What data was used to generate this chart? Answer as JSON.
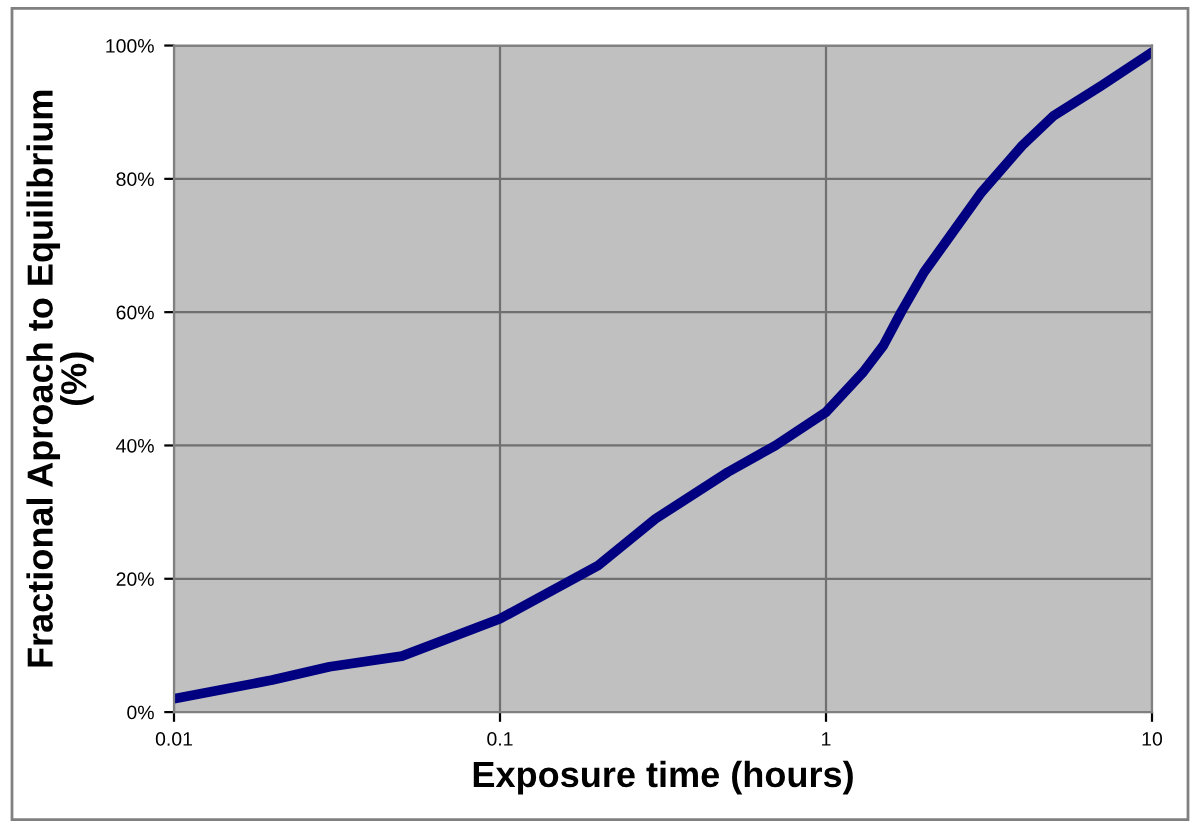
{
  "chart_data": {
    "type": "line",
    "xlabel": "Exposure time (hours)",
    "ylabel": "Fractional Aproach to Equilibrium\n(%)",
    "log": "x",
    "xlim": [
      0.01,
      10
    ],
    "xticks": [
      0.01,
      0.1,
      1,
      10
    ],
    "ylim": [
      0,
      100
    ],
    "yticks": [
      {
        "value": 0,
        "label": "0%"
      },
      {
        "value": 20,
        "label": "20%"
      },
      {
        "value": 40,
        "label": "40%"
      },
      {
        "value": 60,
        "label": "60%"
      },
      {
        "value": 80,
        "label": "80%"
      },
      {
        "value": 100,
        "label": "100%"
      }
    ],
    "grid": true,
    "marker": "none",
    "line_style": "solid",
    "series": [
      {
        "color": "#000080",
        "x": [
          0.01,
          0.02,
          0.03,
          0.05,
          0.1,
          0.2,
          0.3,
          0.5,
          0.7,
          1,
          1.3,
          1.5,
          1.7,
          2,
          3,
          4,
          5,
          7,
          10
        ],
        "values": [
          2,
          4.8,
          6.8,
          8.4,
          14,
          22,
          29,
          36,
          40,
          45,
          51,
          55,
          60,
          66,
          78,
          85,
          89.5,
          94,
          99
        ]
      }
    ]
  }
}
